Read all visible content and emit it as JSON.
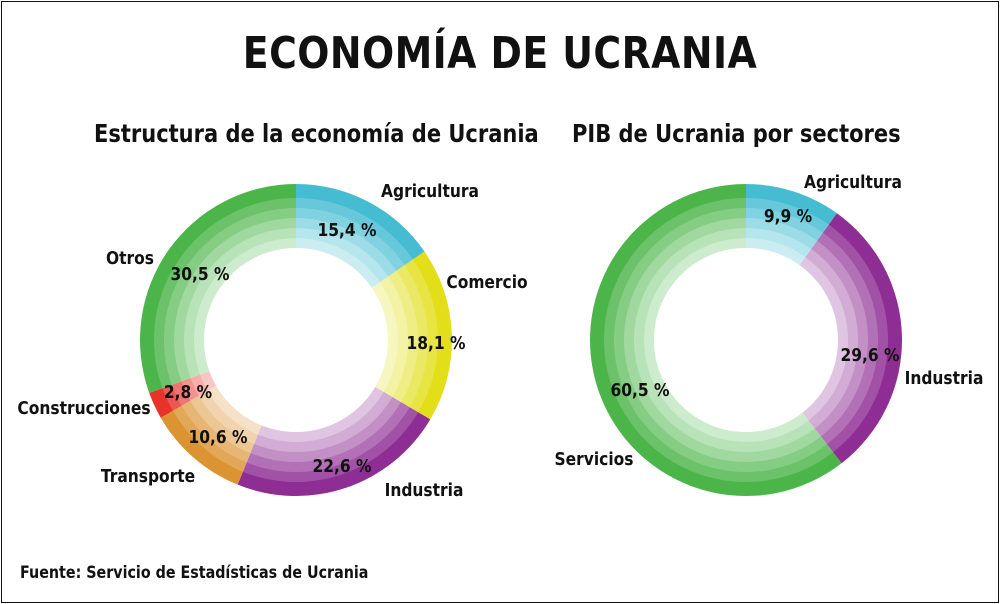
{
  "title": "ECONOMÍA DE UCRANIA",
  "source": "Fuente: Servicio de Estadísticas de Ucrania",
  "chart_data": [
    {
      "type": "pie",
      "title": "Estructura de la economía de Ucrania",
      "series": [
        {
          "name": "Agricultura",
          "value": 15.4,
          "label": "15,4 %",
          "color": "#45bcd2"
        },
        {
          "name": "Comercio",
          "value": 18.1,
          "label": "18,1 %",
          "color": "#e2de1a"
        },
        {
          "name": "Industria",
          "value": 22.6,
          "label": "22,6 %",
          "color": "#8e2d93"
        },
        {
          "name": "Transporte",
          "value": 10.6,
          "label": "10,6 %",
          "color": "#dc9432"
        },
        {
          "name": "Construcciones",
          "value": 2.8,
          "label": "2,8 %",
          "color": "#e8322c"
        },
        {
          "name": "Otros",
          "value": 30.5,
          "label": "30,5 %",
          "color": "#4cb54a"
        }
      ]
    },
    {
      "type": "pie",
      "title": "PIB de Ucrania por sectores",
      "series": [
        {
          "name": "Agricultura",
          "value": 9.9,
          "label": "9,9 %",
          "color": "#45bcd2"
        },
        {
          "name": "Industria",
          "value": 29.6,
          "label": "29,6 %",
          "color": "#8e2d93"
        },
        {
          "name": "Servicios",
          "value": 60.5,
          "label": "60,5 %",
          "color": "#4cb54a"
        }
      ]
    }
  ]
}
